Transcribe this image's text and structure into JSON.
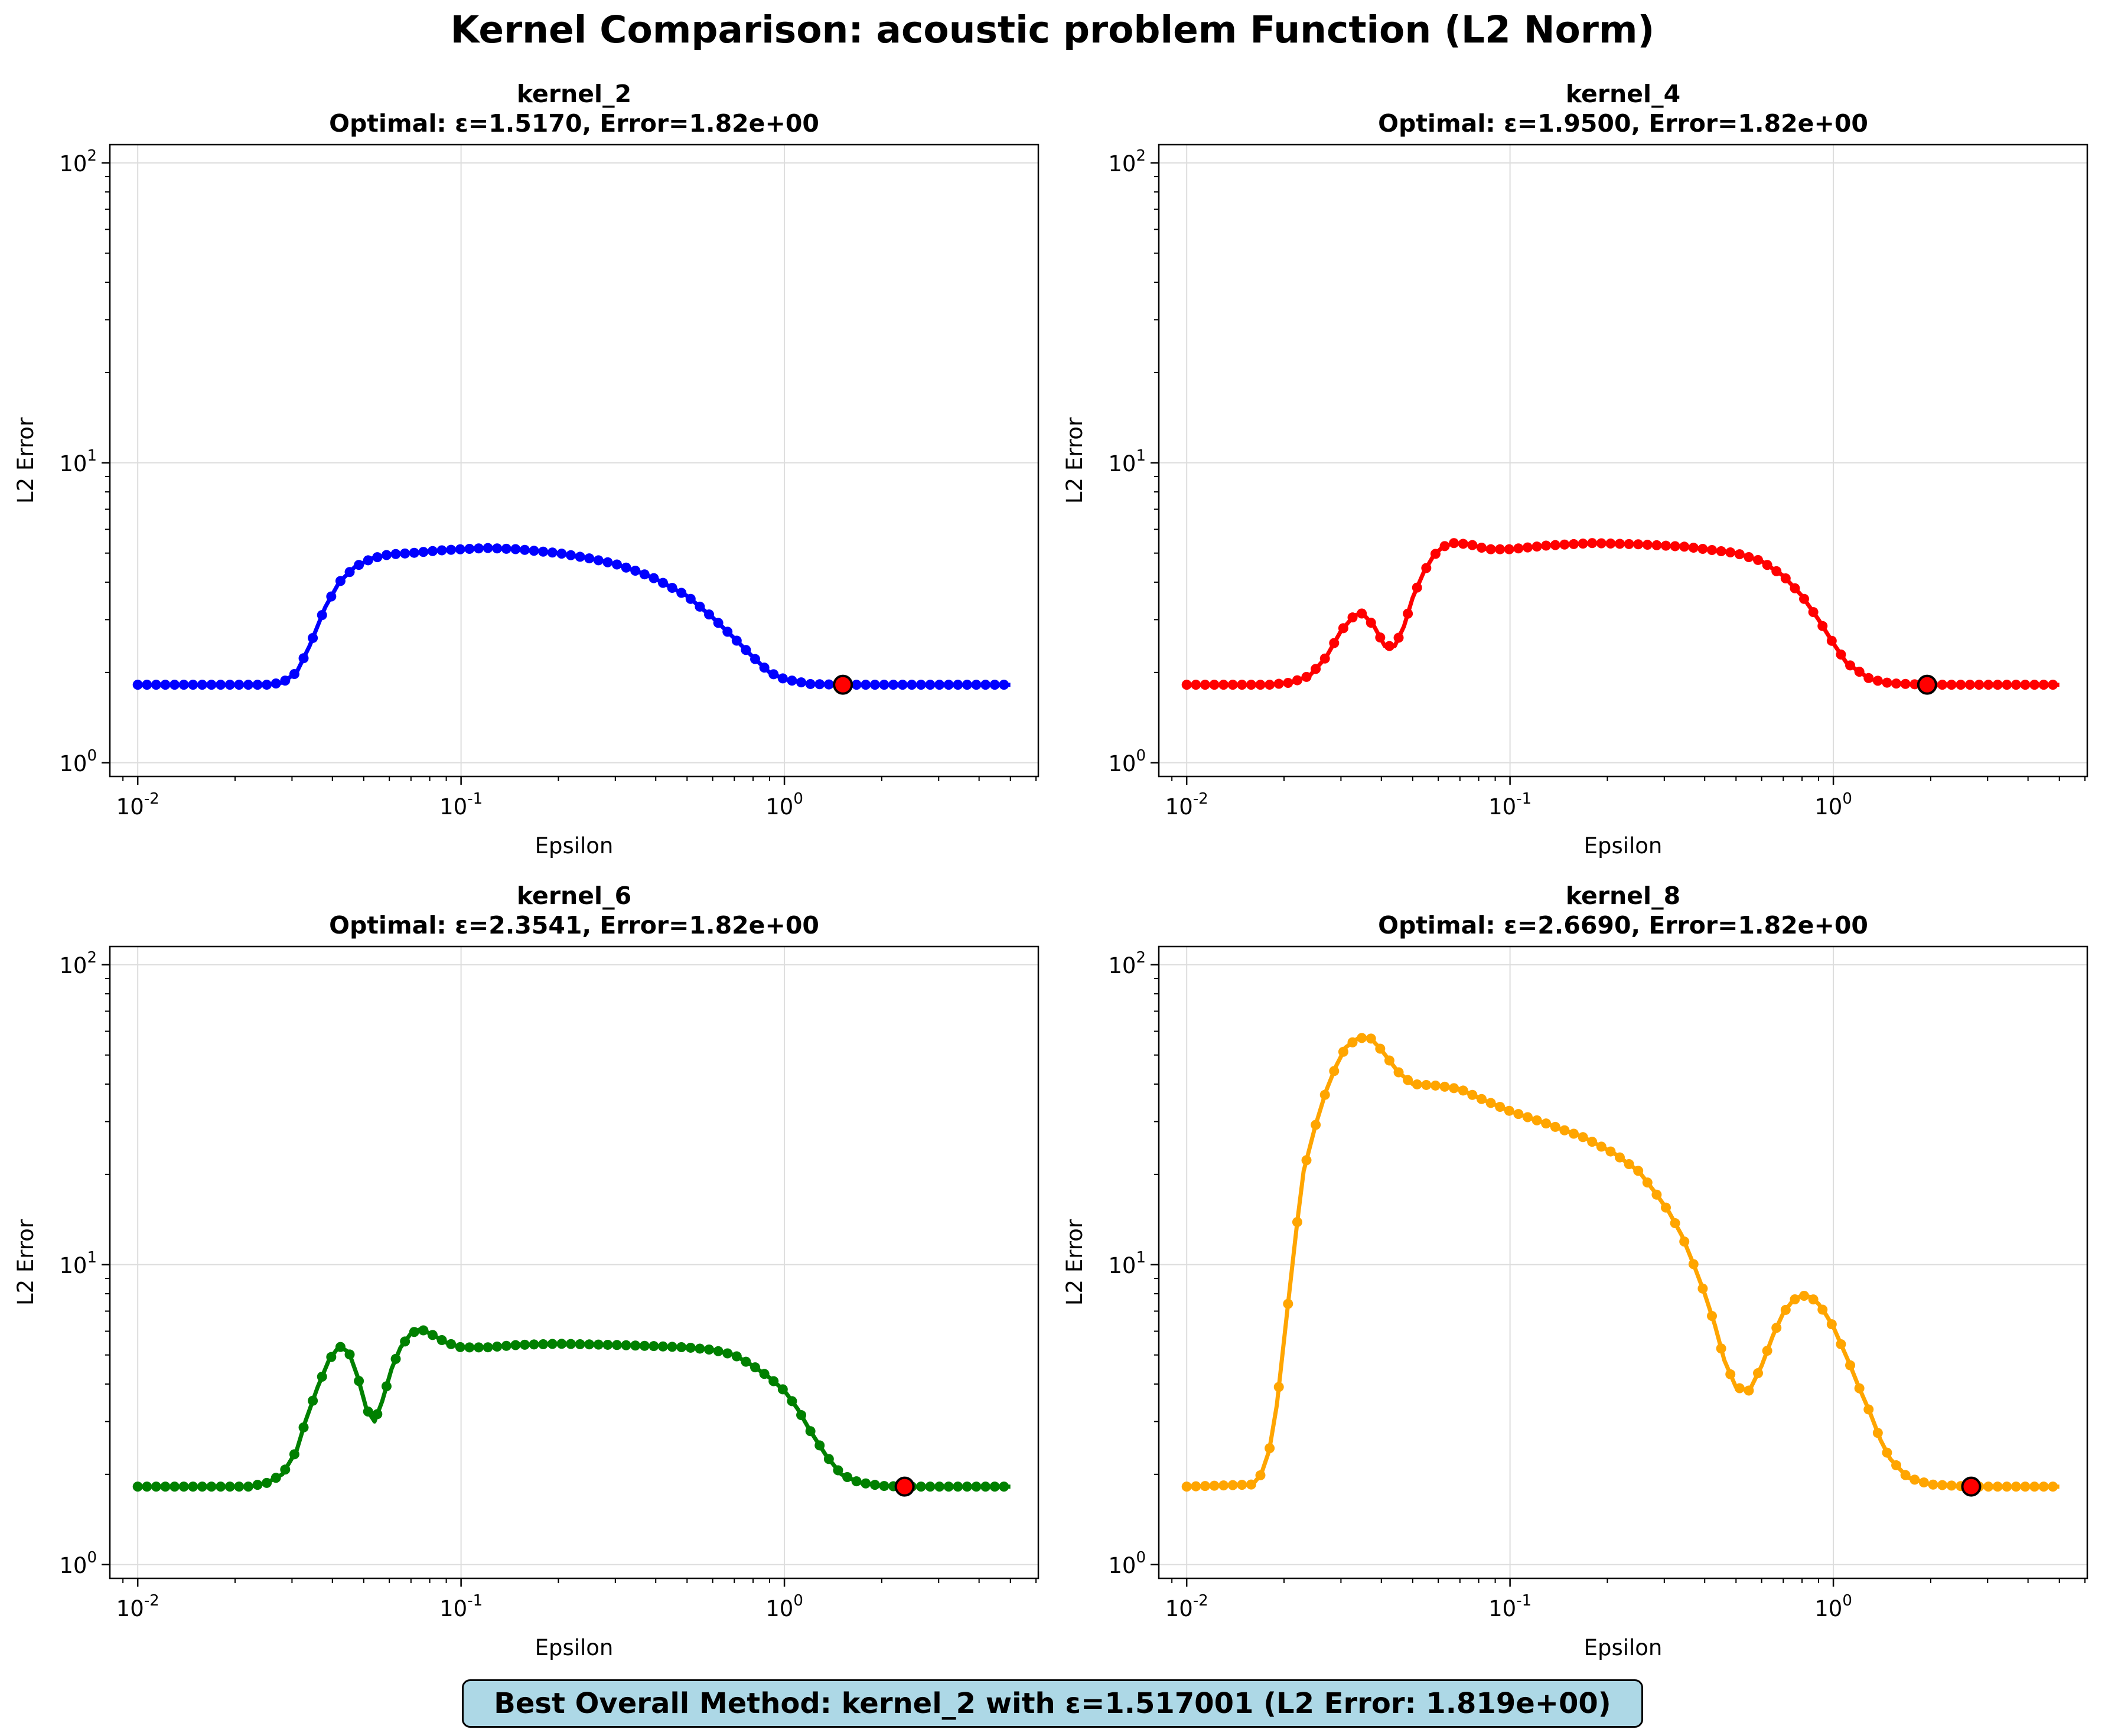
{
  "suptitle": "Kernel Comparison: acoustic problem Function (L2 Norm)",
  "summary": "Best Overall Method: kernel_2 with ε=1.517001 (L2 Error: 1.819e+00)",
  "colors": {
    "kernel_2": "#0000ff",
    "kernel_4": "#ff0000",
    "kernel_6": "#008000",
    "kernel_8": "#ffa500",
    "optimal_marker": "#ff0000",
    "summary_box": "#add8e6"
  },
  "chart_data": [
    {
      "type": "line",
      "name": "kernel_2",
      "title": "kernel_2",
      "subtitle": "Optimal: ε=1.5170, Error=1.82e+00",
      "xlabel": "Epsilon",
      "ylabel": "L2 Error",
      "xscale": "log",
      "yscale": "log",
      "xlim": [
        0.0082,
        6.1
      ],
      "ylim": [
        0.9,
        115
      ],
      "xticks": [
        "10^-2",
        "10^-1",
        "10^0"
      ],
      "yticks": [
        "10^0",
        "10^1",
        "10^2"
      ],
      "grid": true,
      "color": "#0000ff",
      "optimal": {
        "epsilon": 1.517,
        "error": 1.82
      },
      "points": [
        [
          0.01,
          1.82
        ],
        [
          0.025,
          1.82
        ],
        [
          0.028,
          1.85
        ],
        [
          0.031,
          2.0
        ],
        [
          0.034,
          2.45
        ],
        [
          0.038,
          3.3
        ],
        [
          0.042,
          4.0
        ],
        [
          0.047,
          4.5
        ],
        [
          0.053,
          4.8
        ],
        [
          0.06,
          4.95
        ],
        [
          0.07,
          5.0
        ],
        [
          0.085,
          5.1
        ],
        [
          0.1,
          5.15
        ],
        [
          0.12,
          5.2
        ],
        [
          0.15,
          5.15
        ],
        [
          0.2,
          5.0
        ],
        [
          0.25,
          4.8
        ],
        [
          0.3,
          4.6
        ],
        [
          0.35,
          4.35
        ],
        [
          0.4,
          4.1
        ],
        [
          0.5,
          3.6
        ],
        [
          0.6,
          3.05
        ],
        [
          0.7,
          2.6
        ],
        [
          0.8,
          2.25
        ],
        [
          0.9,
          2.0
        ],
        [
          1.0,
          1.9
        ],
        [
          1.2,
          1.83
        ],
        [
          1.517,
          1.82
        ],
        [
          2.0,
          1.82
        ],
        [
          3.0,
          1.82
        ],
        [
          5.0,
          1.82
        ]
      ]
    },
    {
      "type": "line",
      "name": "kernel_4",
      "title": "kernel_4",
      "subtitle": "Optimal: ε=1.9500, Error=1.82e+00",
      "xlabel": "Epsilon",
      "ylabel": "L2 Error",
      "xscale": "log",
      "yscale": "log",
      "xlim": [
        0.0082,
        6.1
      ],
      "ylim": [
        0.9,
        115
      ],
      "xticks": [
        "10^-2",
        "10^-1",
        "10^0"
      ],
      "yticks": [
        "10^0",
        "10^1",
        "10^2"
      ],
      "grid": true,
      "color": "#ff0000",
      "optimal": {
        "epsilon": 1.95,
        "error": 1.82
      },
      "points": [
        [
          0.01,
          1.82
        ],
        [
          0.018,
          1.82
        ],
        [
          0.021,
          1.85
        ],
        [
          0.024,
          1.95
        ],
        [
          0.027,
          2.25
        ],
        [
          0.03,
          2.75
        ],
        [
          0.033,
          3.1
        ],
        [
          0.035,
          3.15
        ],
        [
          0.038,
          2.85
        ],
        [
          0.041,
          2.45
        ],
        [
          0.044,
          2.45
        ],
        [
          0.047,
          2.85
        ],
        [
          0.05,
          3.55
        ],
        [
          0.054,
          4.3
        ],
        [
          0.058,
          4.9
        ],
        [
          0.062,
          5.25
        ],
        [
          0.067,
          5.4
        ],
        [
          0.075,
          5.35
        ],
        [
          0.085,
          5.15
        ],
        [
          0.1,
          5.15
        ],
        [
          0.13,
          5.3
        ],
        [
          0.18,
          5.4
        ],
        [
          0.25,
          5.35
        ],
        [
          0.35,
          5.25
        ],
        [
          0.5,
          5.0
        ],
        [
          0.6,
          4.7
        ],
        [
          0.7,
          4.2
        ],
        [
          0.8,
          3.6
        ],
        [
          0.9,
          3.0
        ],
        [
          1.0,
          2.5
        ],
        [
          1.1,
          2.15
        ],
        [
          1.3,
          1.9
        ],
        [
          1.5,
          1.84
        ],
        [
          1.95,
          1.82
        ],
        [
          3.0,
          1.82
        ],
        [
          5.0,
          1.82
        ]
      ]
    },
    {
      "type": "line",
      "name": "kernel_6",
      "title": "kernel_6",
      "subtitle": "Optimal: ε=2.3541, Error=1.82e+00",
      "xlabel": "Epsilon",
      "ylabel": "L2 Error",
      "xscale": "log",
      "yscale": "log",
      "xlim": [
        0.0082,
        6.1
      ],
      "ylim": [
        0.9,
        115
      ],
      "xticks": [
        "10^-2",
        "10^-1",
        "10^0"
      ],
      "yticks": [
        "10^0",
        "10^1",
        "10^2"
      ],
      "grid": true,
      "color": "#008000",
      "optimal": {
        "epsilon": 2.3541,
        "error": 1.82
      },
      "points": [
        [
          0.01,
          1.82
        ],
        [
          0.022,
          1.82
        ],
        [
          0.025,
          1.87
        ],
        [
          0.028,
          2.0
        ],
        [
          0.031,
          2.4
        ],
        [
          0.033,
          3.0
        ],
        [
          0.036,
          3.9
        ],
        [
          0.039,
          4.8
        ],
        [
          0.042,
          5.35
        ],
        [
          0.045,
          5.1
        ],
        [
          0.048,
          4.2
        ],
        [
          0.051,
          3.3
        ],
        [
          0.054,
          3.0
        ],
        [
          0.057,
          3.5
        ],
        [
          0.061,
          4.5
        ],
        [
          0.065,
          5.3
        ],
        [
          0.07,
          5.9
        ],
        [
          0.075,
          6.1
        ],
        [
          0.08,
          5.9
        ],
        [
          0.09,
          5.5
        ],
        [
          0.1,
          5.3
        ],
        [
          0.12,
          5.3
        ],
        [
          0.15,
          5.4
        ],
        [
          0.2,
          5.45
        ],
        [
          0.3,
          5.4
        ],
        [
          0.4,
          5.35
        ],
        [
          0.5,
          5.3
        ],
        [
          0.6,
          5.2
        ],
        [
          0.7,
          5.0
        ],
        [
          0.8,
          4.6
        ],
        [
          0.9,
          4.2
        ],
        [
          1.0,
          3.8
        ],
        [
          1.1,
          3.3
        ],
        [
          1.2,
          2.8
        ],
        [
          1.35,
          2.3
        ],
        [
          1.5,
          2.0
        ],
        [
          1.7,
          1.88
        ],
        [
          2.0,
          1.83
        ],
        [
          2.3541,
          1.82
        ],
        [
          3.0,
          1.82
        ],
        [
          5.0,
          1.82
        ]
      ]
    },
    {
      "type": "line",
      "name": "kernel_8",
      "title": "kernel_8",
      "subtitle": "Optimal: ε=2.6690, Error=1.82e+00",
      "xlabel": "Epsilon",
      "ylabel": "L2 Error",
      "xscale": "log",
      "yscale": "log",
      "xlim": [
        0.0082,
        6.1
      ],
      "ylim": [
        0.9,
        115
      ],
      "xticks": [
        "10^-2",
        "10^-1",
        "10^0"
      ],
      "yticks": [
        "10^0",
        "10^1",
        "10^2"
      ],
      "grid": true,
      "color": "#ffa500",
      "optimal": {
        "epsilon": 2.669,
        "error": 1.82
      },
      "points": [
        [
          0.01,
          1.82
        ],
        [
          0.016,
          1.85
        ],
        [
          0.017,
          2.0
        ],
        [
          0.018,
          2.4
        ],
        [
          0.019,
          3.4
        ],
        [
          0.02,
          5.6
        ],
        [
          0.021,
          9.0
        ],
        [
          0.022,
          14.0
        ],
        [
          0.023,
          20.5
        ],
        [
          0.025,
          29.0
        ],
        [
          0.027,
          38.0
        ],
        [
          0.029,
          46.0
        ],
        [
          0.031,
          53.0
        ],
        [
          0.034,
          57.0
        ],
        [
          0.037,
          57.0
        ],
        [
          0.04,
          52.0
        ],
        [
          0.045,
          44.0
        ],
        [
          0.05,
          40.0
        ],
        [
          0.06,
          39.5
        ],
        [
          0.07,
          38.5
        ],
        [
          0.08,
          36.0
        ],
        [
          0.1,
          32.5
        ],
        [
          0.13,
          29.5
        ],
        [
          0.17,
          26.5
        ],
        [
          0.21,
          23.5
        ],
        [
          0.25,
          20.5
        ],
        [
          0.28,
          17.5
        ],
        [
          0.31,
          15.0
        ],
        [
          0.34,
          12.5
        ],
        [
          0.37,
          10.0
        ],
        [
          0.4,
          8.0
        ],
        [
          0.43,
          6.3
        ],
        [
          0.46,
          4.8
        ],
        [
          0.5,
          3.9
        ],
        [
          0.55,
          3.8
        ],
        [
          0.6,
          4.6
        ],
        [
          0.65,
          5.8
        ],
        [
          0.7,
          6.9
        ],
        [
          0.75,
          7.6
        ],
        [
          0.8,
          7.9
        ],
        [
          0.85,
          7.8
        ],
        [
          0.9,
          7.4
        ],
        [
          0.95,
          6.8
        ],
        [
          1.0,
          6.2
        ],
        [
          1.05,
          5.5
        ],
        [
          1.12,
          4.7
        ],
        [
          1.2,
          3.9
        ],
        [
          1.3,
          3.2
        ],
        [
          1.4,
          2.6
        ],
        [
          1.5,
          2.25
        ],
        [
          1.7,
          1.95
        ],
        [
          2.0,
          1.85
        ],
        [
          2.669,
          1.82
        ],
        [
          3.5,
          1.82
        ],
        [
          5.0,
          1.82
        ]
      ]
    }
  ]
}
